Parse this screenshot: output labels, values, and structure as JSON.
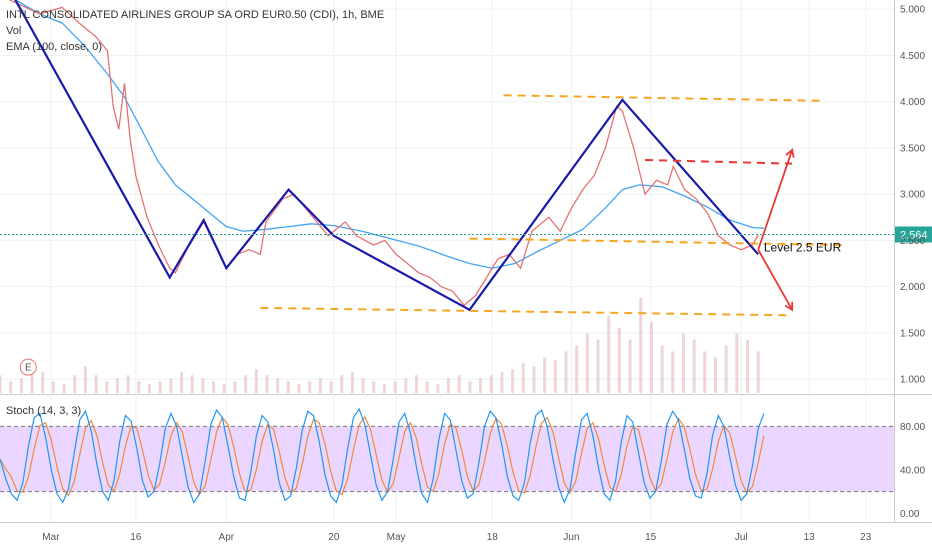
{
  "chart_data": {
    "type": "line",
    "title": "INTL CONSOLIDATED AIRLINES GROUP SA ORD EUR0.50 (CDI), 1h, BME",
    "indicators": [
      "Vol",
      "EMA (100, close, 0)"
    ],
    "x_ticks": [
      "Mar",
      "16",
      "Apr",
      "20",
      "May",
      "18",
      "Jun",
      "15",
      "Jul",
      "13",
      "23"
    ],
    "x_tick_days": [
      0,
      15,
      31,
      50,
      61,
      78,
      92,
      106,
      122,
      134,
      144
    ],
    "y_ticks": [
      5.0,
      4.5,
      4.0,
      3.5,
      3.0,
      2.5,
      2.0,
      1.5,
      1.0
    ],
    "y_tick_labels": [
      "5.000",
      "4.500",
      "4.000",
      "3.500",
      "3.000",
      "2.500",
      "2.000",
      "1.500",
      "1.000"
    ],
    "ylim": [
      0.85,
      5.1
    ],
    "xlim": [
      -9,
      149
    ],
    "last_price": 2.564,
    "last_price_label": "2.564",
    "price_series": {
      "name": "",
      "points": [
        [
          -9,
          5.15
        ],
        [
          -2,
          4.95
        ],
        [
          2,
          5.02
        ],
        [
          5,
          4.85
        ],
        [
          8,
          4.7
        ],
        [
          10,
          4.55
        ],
        [
          11,
          3.95
        ],
        [
          12,
          3.7
        ],
        [
          13,
          4.2
        ],
        [
          14,
          3.6
        ],
        [
          15,
          3.2
        ],
        [
          17,
          2.75
        ],
        [
          19,
          2.45
        ],
        [
          21,
          2.2
        ],
        [
          22,
          2.15
        ],
        [
          24,
          2.4
        ],
        [
          26,
          2.6
        ],
        [
          27,
          2.7
        ],
        [
          29,
          2.45
        ],
        [
          31,
          2.2
        ],
        [
          33,
          2.35
        ],
        [
          35,
          2.4
        ],
        [
          37,
          2.35
        ],
        [
          38,
          2.7
        ],
        [
          41,
          2.95
        ],
        [
          43,
          3.0
        ],
        [
          45,
          2.85
        ],
        [
          47,
          2.7
        ],
        [
          49,
          2.55
        ],
        [
          52,
          2.7
        ],
        [
          54,
          2.55
        ],
        [
          57,
          2.45
        ],
        [
          59,
          2.5
        ],
        [
          61,
          2.35
        ],
        [
          63,
          2.25
        ],
        [
          65,
          2.15
        ],
        [
          67,
          2.1
        ],
        [
          69,
          2.0
        ],
        [
          71,
          1.95
        ],
        [
          73,
          1.8
        ],
        [
          75,
          1.9
        ],
        [
          77,
          2.1
        ],
        [
          79,
          2.3
        ],
        [
          81,
          2.35
        ],
        [
          83,
          2.2
        ],
        [
          85,
          2.6
        ],
        [
          87,
          2.7
        ],
        [
          88,
          2.75
        ],
        [
          90,
          2.6
        ],
        [
          92,
          2.85
        ],
        [
          94,
          3.05
        ],
        [
          96,
          3.2
        ],
        [
          98,
          3.5
        ],
        [
          100,
          3.95
        ],
        [
          101,
          3.9
        ],
        [
          103,
          3.5
        ],
        [
          105,
          3.0
        ],
        [
          107,
          3.15
        ],
        [
          109,
          3.1
        ],
        [
          110,
          3.3
        ],
        [
          112,
          3.05
        ],
        [
          114,
          2.95
        ],
        [
          116,
          2.8
        ],
        [
          118,
          2.55
        ],
        [
          120,
          2.45
        ],
        [
          122,
          2.4
        ],
        [
          124,
          2.45
        ],
        [
          125,
          2.56
        ]
      ]
    },
    "ema_series": {
      "name": "",
      "points": [
        [
          -9,
          5.2
        ],
        [
          -2,
          4.95
        ],
        [
          2,
          4.85
        ],
        [
          6,
          4.6
        ],
        [
          10,
          4.3
        ],
        [
          13,
          4.05
        ],
        [
          16,
          3.7
        ],
        [
          19,
          3.35
        ],
        [
          22,
          3.1
        ],
        [
          25,
          2.95
        ],
        [
          28,
          2.8
        ],
        [
          31,
          2.65
        ],
        [
          34,
          2.6
        ],
        [
          38,
          2.62
        ],
        [
          42,
          2.65
        ],
        [
          46,
          2.68
        ],
        [
          50,
          2.66
        ],
        [
          55,
          2.6
        ],
        [
          60,
          2.52
        ],
        [
          65,
          2.44
        ],
        [
          70,
          2.33
        ],
        [
          74,
          2.25
        ],
        [
          78,
          2.2
        ],
        [
          82,
          2.25
        ],
        [
          86,
          2.38
        ],
        [
          90,
          2.5
        ],
        [
          94,
          2.62
        ],
        [
          98,
          2.85
        ],
        [
          101,
          3.05
        ],
        [
          104,
          3.1
        ],
        [
          108,
          3.08
        ],
        [
          112,
          2.98
        ],
        [
          116,
          2.86
        ],
        [
          120,
          2.72
        ],
        [
          124,
          2.64
        ],
        [
          126,
          2.63
        ]
      ]
    },
    "zigzag": {
      "name": "",
      "points": [
        [
          -9,
          5.4
        ],
        [
          21,
          2.1
        ],
        [
          27,
          2.72
        ],
        [
          31,
          2.2
        ],
        [
          42,
          3.05
        ],
        [
          50,
          2.55
        ],
        [
          74,
          1.75
        ],
        [
          101,
          4.02
        ],
        [
          125,
          2.35
        ]
      ]
    },
    "support_resistance_lines": [
      {
        "name": "",
        "style": "dashed-orange",
        "from": [
          80,
          4.07
        ],
        "to": [
          136,
          4.01
        ]
      },
      {
        "name": "",
        "style": "dashed-orange",
        "from": [
          74,
          2.52
        ],
        "to": [
          140,
          2.45
        ]
      },
      {
        "name": "",
        "style": "dashed-orange",
        "from": [
          37,
          1.77
        ],
        "to": [
          131,
          1.69
        ]
      },
      {
        "name": "",
        "style": "dashed-red",
        "from": [
          105,
          3.37
        ],
        "to": [
          131,
          3.33
        ]
      }
    ],
    "projections": [
      {
        "direction": "up",
        "from": [
          125,
          2.4
        ],
        "to": [
          131,
          3.48
        ]
      },
      {
        "direction": "down",
        "from": [
          125,
          2.4
        ],
        "to": [
          131,
          1.75
        ]
      }
    ],
    "annotations": [
      {
        "text": "Level 2.5 EUR",
        "x": 126,
        "y": 2.38
      }
    ],
    "event_marker": {
      "text": "E",
      "x": -4,
      "y": 1.13
    },
    "volume": {
      "name": "Vol",
      "x_start": -9,
      "x_end": 125,
      "values": [
        0.3,
        0.2,
        0.25,
        0.4,
        0.35,
        0.2,
        0.15,
        0.3,
        0.45,
        0.3,
        0.2,
        0.25,
        0.3,
        0.2,
        0.15,
        0.2,
        0.25,
        0.35,
        0.3,
        0.25,
        0.2,
        0.15,
        0.2,
        0.3,
        0.4,
        0.3,
        0.25,
        0.2,
        0.15,
        0.2,
        0.25,
        0.2,
        0.3,
        0.35,
        0.25,
        0.2,
        0.15,
        0.2,
        0.25,
        0.3,
        0.2,
        0.15,
        0.25,
        0.3,
        0.2,
        0.25,
        0.3,
        0.35,
        0.4,
        0.5,
        0.45,
        0.6,
        0.55,
        0.7,
        0.8,
        1.0,
        0.9,
        1.3,
        1.1,
        0.9,
        1.6,
        1.2,
        0.8,
        0.7,
        1.0,
        0.9,
        0.7,
        0.6,
        0.8,
        1.0,
        0.9,
        0.7
      ]
    }
  },
  "stoch_panel": {
    "title": "Stoch (14, 3, 3)",
    "y_ticks": [
      80,
      40,
      0
    ],
    "y_tick_labels": [
      "80.00",
      "40.00",
      "0.00"
    ],
    "ylim": [
      -8,
      108
    ],
    "band": [
      20,
      80
    ],
    "x_start": -9,
    "x_end": 126,
    "k_values": [
      50,
      32,
      18,
      12,
      28,
      62,
      88,
      92,
      70,
      40,
      18,
      10,
      22,
      55,
      86,
      94,
      76,
      45,
      20,
      12,
      30,
      66,
      90,
      85,
      60,
      30,
      15,
      20,
      45,
      78,
      92,
      80,
      52,
      24,
      10,
      18,
      48,
      82,
      95,
      88,
      62,
      34,
      14,
      12,
      38,
      72,
      90,
      84,
      58,
      28,
      12,
      16,
      42,
      76,
      94,
      90,
      66,
      36,
      16,
      10,
      26,
      60,
      88,
      96,
      82,
      54,
      26,
      12,
      20,
      50,
      84,
      92,
      74,
      44,
      18,
      10,
      32,
      68,
      92,
      86,
      58,
      30,
      14,
      18,
      46,
      80,
      94,
      88,
      64,
      34,
      16,
      12,
      28,
      64,
      90,
      95,
      80,
      50,
      24,
      10,
      22,
      56,
      86,
      92,
      72,
      42,
      18,
      12,
      30,
      66,
      90,
      84,
      56,
      28,
      14,
      20,
      48,
      82,
      94,
      86,
      60,
      32,
      16,
      14,
      36,
      72,
      90,
      80,
      52,
      26,
      12,
      18,
      44,
      78,
      92
    ]
  },
  "colors": {
    "background": "#ffffff",
    "price_line": "#e57373",
    "ema_line": "#42a5f5",
    "zigzag": "#1a1aaa",
    "dash_orange": "#f5a623",
    "dash_red": "#e53935",
    "arrow": "#e53935",
    "stoch_k": "#2196f3",
    "stoch_d": "#ef8a3d",
    "stoch_band": "#e6ccff",
    "last_price_badge": "#26a69a",
    "grid": "#eef0f3",
    "volume": "#e0b4b4"
  }
}
